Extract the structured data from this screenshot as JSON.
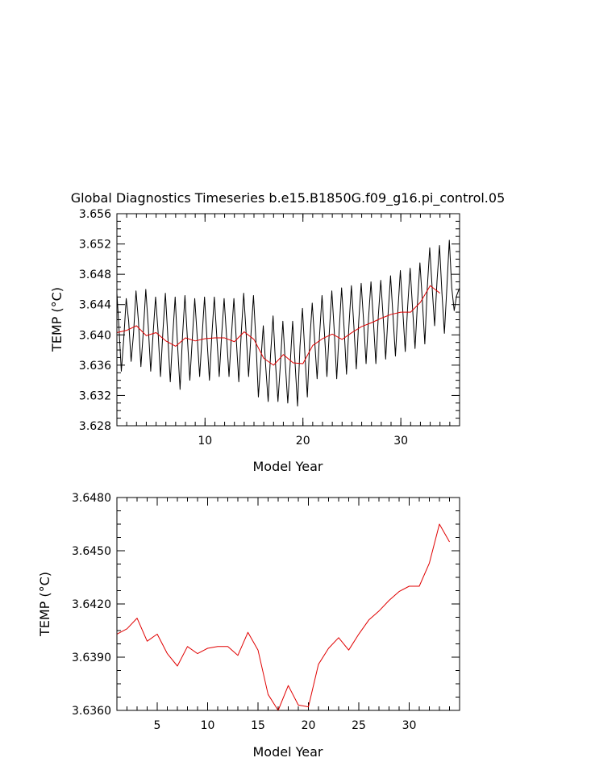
{
  "chart_data": [
    {
      "type": "line",
      "title": "Global Diagnostics Timeseries b.e15.B1850G.f09_g16.pi_control.05",
      "xlabel": "Model Year",
      "ylabel": "TEMP (°C)",
      "xlim": [
        1,
        36
      ],
      "ylim": [
        3.628,
        3.656
      ],
      "x_ticks": [
        10,
        20,
        30
      ],
      "x_tick_labels": [
        "10",
        "20",
        "30"
      ],
      "y_ticks": [
        3.628,
        3.632,
        3.636,
        3.64,
        3.644,
        3.648,
        3.652,
        3.656
      ],
      "y_tick_labels": [
        "3.628",
        "3.632",
        "3.636",
        "3.640",
        "3.644",
        "3.648",
        "3.652",
        "3.656"
      ],
      "grid": false,
      "series": [
        {
          "color": "#000000",
          "points": [
            [
              1.0,
              3.6455
            ],
            [
              1.2,
              3.6412
            ],
            [
              1.45,
              3.6352
            ],
            [
              1.7,
              3.6395
            ],
            [
              1.95,
              3.6448
            ],
            [
              2.2,
              3.6418
            ],
            [
              2.45,
              3.6365
            ],
            [
              2.7,
              3.6402
            ],
            [
              2.95,
              3.6458
            ],
            [
              3.2,
              3.6418
            ],
            [
              3.45,
              3.6358
            ],
            [
              3.7,
              3.6405
            ],
            [
              3.95,
              3.646
            ],
            [
              4.2,
              3.6412
            ],
            [
              4.45,
              3.6352
            ],
            [
              4.7,
              3.6402
            ],
            [
              4.95,
              3.645
            ],
            [
              5.2,
              3.6405
            ],
            [
              5.45,
              3.6345
            ],
            [
              5.7,
              3.6405
            ],
            [
              5.95,
              3.6455
            ],
            [
              6.2,
              3.6398
            ],
            [
              6.45,
              3.6338
            ],
            [
              6.7,
              3.6398
            ],
            [
              6.95,
              3.645
            ],
            [
              7.2,
              3.6385
            ],
            [
              7.45,
              3.6328
            ],
            [
              7.7,
              3.6398
            ],
            [
              7.95,
              3.6452
            ],
            [
              8.2,
              3.6395
            ],
            [
              8.45,
              3.634
            ],
            [
              8.7,
              3.6395
            ],
            [
              8.95,
              3.6448
            ],
            [
              9.2,
              3.6398
            ],
            [
              9.45,
              3.6345
            ],
            [
              9.7,
              3.6398
            ],
            [
              9.95,
              3.645
            ],
            [
              10.2,
              3.6395
            ],
            [
              10.45,
              3.634
            ],
            [
              10.7,
              3.64
            ],
            [
              10.95,
              3.645
            ],
            [
              11.2,
              3.6398
            ],
            [
              11.45,
              3.6345
            ],
            [
              11.7,
              3.64
            ],
            [
              11.95,
              3.6448
            ],
            [
              12.2,
              3.6398
            ],
            [
              12.45,
              3.6345
            ],
            [
              12.7,
              3.64
            ],
            [
              12.95,
              3.6448
            ],
            [
              13.2,
              3.6392
            ],
            [
              13.45,
              3.6338
            ],
            [
              13.7,
              3.6402
            ],
            [
              13.95,
              3.6455
            ],
            [
              14.2,
              3.6402
            ],
            [
              14.45,
              3.6345
            ],
            [
              14.7,
              3.6402
            ],
            [
              14.95,
              3.6452
            ],
            [
              15.2,
              3.6392
            ],
            [
              15.45,
              3.6318
            ],
            [
              15.7,
              3.6365
            ],
            [
              15.95,
              3.6412
            ],
            [
              16.2,
              3.6358
            ],
            [
              16.45,
              3.6312
            ],
            [
              16.7,
              3.6375
            ],
            [
              16.95,
              3.6425
            ],
            [
              17.2,
              3.6362
            ],
            [
              17.45,
              3.6312
            ],
            [
              17.7,
              3.6362
            ],
            [
              17.95,
              3.6418
            ],
            [
              18.2,
              3.6362
            ],
            [
              18.45,
              3.631
            ],
            [
              18.7,
              3.6362
            ],
            [
              18.95,
              3.6418
            ],
            [
              19.2,
              3.6362
            ],
            [
              19.45,
              3.6306
            ],
            [
              19.7,
              3.6385
            ],
            [
              19.95,
              3.6435
            ],
            [
              20.2,
              3.6375
            ],
            [
              20.45,
              3.6318
            ],
            [
              20.7,
              3.6392
            ],
            [
              20.95,
              3.6442
            ],
            [
              21.2,
              3.6392
            ],
            [
              21.45,
              3.6342
            ],
            [
              21.7,
              3.64
            ],
            [
              21.95,
              3.6452
            ],
            [
              22.2,
              3.6402
            ],
            [
              22.45,
              3.6345
            ],
            [
              22.7,
              3.6405
            ],
            [
              22.95,
              3.6458
            ],
            [
              23.2,
              3.6405
            ],
            [
              23.45,
              3.6342
            ],
            [
              23.7,
              3.6405
            ],
            [
              23.95,
              3.6462
            ],
            [
              24.2,
              3.641
            ],
            [
              24.45,
              3.6348
            ],
            [
              24.7,
              3.6412
            ],
            [
              24.95,
              3.6465
            ],
            [
              25.2,
              3.6412
            ],
            [
              25.45,
              3.6355
            ],
            [
              25.7,
              3.6418
            ],
            [
              25.95,
              3.6468
            ],
            [
              26.2,
              3.6418
            ],
            [
              26.45,
              3.6362
            ],
            [
              26.7,
              3.6422
            ],
            [
              26.95,
              3.647
            ],
            [
              27.2,
              3.6418
            ],
            [
              27.45,
              3.6362
            ],
            [
              27.7,
              3.6425
            ],
            [
              27.95,
              3.6472
            ],
            [
              28.2,
              3.6422
            ],
            [
              28.45,
              3.6368
            ],
            [
              28.7,
              3.6428
            ],
            [
              28.95,
              3.6478
            ],
            [
              29.2,
              3.6425
            ],
            [
              29.45,
              3.6372
            ],
            [
              29.7,
              3.6432
            ],
            [
              29.95,
              3.6485
            ],
            [
              30.2,
              3.6432
            ],
            [
              30.45,
              3.6378
            ],
            [
              30.7,
              3.6438
            ],
            [
              30.95,
              3.6488
            ],
            [
              31.2,
              3.6435
            ],
            [
              31.45,
              3.6382
            ],
            [
              31.7,
              3.6442
            ],
            [
              31.95,
              3.6495
            ],
            [
              32.2,
              3.6445
            ],
            [
              32.45,
              3.6388
            ],
            [
              32.7,
              3.6462
            ],
            [
              32.95,
              3.6515
            ],
            [
              33.2,
              3.6462
            ],
            [
              33.45,
              3.6412
            ],
            [
              33.7,
              3.6472
            ],
            [
              33.95,
              3.6518
            ],
            [
              34.2,
              3.6455
            ],
            [
              34.45,
              3.6402
            ],
            [
              34.7,
              3.6462
            ],
            [
              34.95,
              3.6525
            ],
            [
              35.2,
              3.6462
            ],
            [
              35.45,
              3.6432
            ],
            [
              35.7,
              3.6452
            ],
            [
              36.0,
              3.6462
            ]
          ]
        },
        {
          "color": "#e00000",
          "points": [
            [
              1.0,
              3.6403
            ],
            [
              2.0,
              3.6406
            ],
            [
              3.0,
              3.6412
            ],
            [
              4.0,
              3.6399
            ],
            [
              5.0,
              3.6403
            ],
            [
              6.0,
              3.6392
            ],
            [
              7.0,
              3.6385
            ],
            [
              8.0,
              3.6396
            ],
            [
              9.0,
              3.6392
            ],
            [
              10.0,
              3.6395
            ],
            [
              11.0,
              3.6396
            ],
            [
              12.0,
              3.6396
            ],
            [
              13.0,
              3.6391
            ],
            [
              14.0,
              3.6404
            ],
            [
              15.0,
              3.6394
            ],
            [
              16.0,
              3.6369
            ],
            [
              17.0,
              3.636
            ],
            [
              18.0,
              3.6374
            ],
            [
              19.0,
              3.6363
            ],
            [
              20.0,
              3.6362
            ],
            [
              21.0,
              3.6386
            ],
            [
              22.0,
              3.6395
            ],
            [
              23.0,
              3.6401
            ],
            [
              24.0,
              3.6394
            ],
            [
              25.0,
              3.6403
            ],
            [
              26.0,
              3.6411
            ],
            [
              27.0,
              3.6416
            ],
            [
              28.0,
              3.6422
            ],
            [
              29.0,
              3.6427
            ],
            [
              30.0,
              3.643
            ],
            [
              31.0,
              3.643
            ],
            [
              32.0,
              3.6443
            ],
            [
              33.0,
              3.6465
            ],
            [
              34.0,
              3.6455
            ]
          ]
        }
      ]
    },
    {
      "type": "line",
      "title": "",
      "xlabel": "Model Year",
      "ylabel": "TEMP (°C)",
      "xlim": [
        1,
        35
      ],
      "ylim": [
        3.636,
        3.648
      ],
      "x_ticks": [
        5,
        10,
        15,
        20,
        25,
        30
      ],
      "x_tick_labels": [
        "5",
        "10",
        "15",
        "20",
        "25",
        "30"
      ],
      "y_ticks": [
        3.636,
        3.639,
        3.642,
        3.645,
        3.648
      ],
      "y_tick_labels": [
        "3.6360",
        "3.6390",
        "3.6420",
        "3.6450",
        "3.6480"
      ],
      "grid": false,
      "series": [
        {
          "color": "#e00000",
          "points": [
            [
              1.0,
              3.6403
            ],
            [
              2.0,
              3.6406
            ],
            [
              3.0,
              3.6412
            ],
            [
              4.0,
              3.6399
            ],
            [
              5.0,
              3.6403
            ],
            [
              6.0,
              3.6392
            ],
            [
              7.0,
              3.6385
            ],
            [
              8.0,
              3.6396
            ],
            [
              9.0,
              3.6392
            ],
            [
              10.0,
              3.6395
            ],
            [
              11.0,
              3.6396
            ],
            [
              12.0,
              3.6396
            ],
            [
              13.0,
              3.6391
            ],
            [
              14.0,
              3.6404
            ],
            [
              15.0,
              3.6394
            ],
            [
              16.0,
              3.6369
            ],
            [
              17.0,
              3.636
            ],
            [
              18.0,
              3.6374
            ],
            [
              19.0,
              3.6363
            ],
            [
              20.0,
              3.6362
            ],
            [
              21.0,
              3.6386
            ],
            [
              22.0,
              3.6395
            ],
            [
              23.0,
              3.6401
            ],
            [
              24.0,
              3.6394
            ],
            [
              25.0,
              3.6403
            ],
            [
              26.0,
              3.6411
            ],
            [
              27.0,
              3.6416
            ],
            [
              28.0,
              3.6422
            ],
            [
              29.0,
              3.6427
            ],
            [
              30.0,
              3.643
            ],
            [
              31.0,
              3.643
            ],
            [
              32.0,
              3.6443
            ],
            [
              33.0,
              3.6465
            ],
            [
              34.0,
              3.6455
            ]
          ]
        }
      ]
    }
  ]
}
